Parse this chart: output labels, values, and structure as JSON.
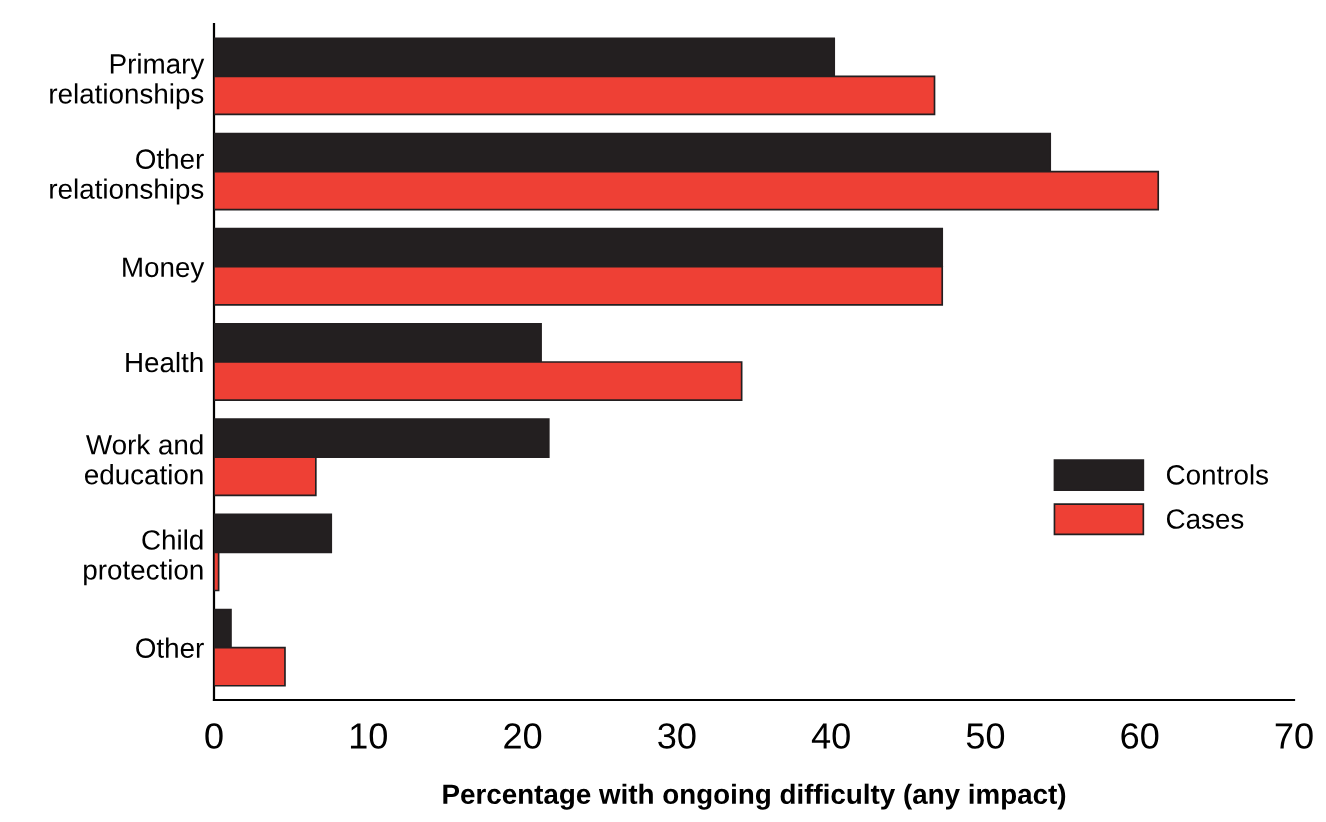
{
  "chart_data": {
    "type": "bar",
    "orientation": "horizontal",
    "xlabel": "Percentage with ongoing difficulty (any impact)",
    "categories": [
      "Primary\nrelationships",
      "Other\nrelationships",
      "Money",
      "Health",
      "Work and\neducation",
      "Child\nprotection",
      "Other"
    ],
    "series": [
      {
        "name": "Controls",
        "color": "#231f20",
        "values": [
          40.2,
          54.2,
          47.2,
          21.2,
          21.7,
          7.6,
          1.1
        ]
      },
      {
        "name": "Cases",
        "color": "#ee4035",
        "values": [
          46.7,
          61.2,
          47.2,
          34.2,
          6.6,
          0.3,
          4.6
        ]
      }
    ],
    "xlim": [
      0,
      70
    ],
    "xticks": [
      0,
      10,
      20,
      30,
      40,
      50,
      60,
      70
    ],
    "grid": false,
    "legend": "right"
  }
}
